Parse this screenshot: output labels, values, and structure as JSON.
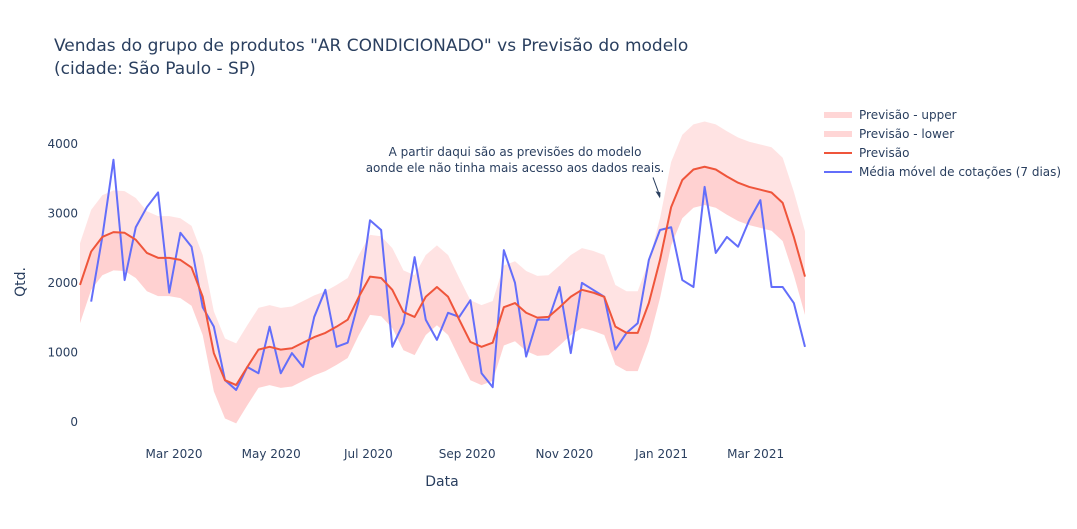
{
  "chart_data": {
    "type": "line",
    "title": [
      "Vendas do grupo de produtos \"AR CONDICIONADO\" vs Previsão do modelo",
      "(cidade: São Paulo - SP)"
    ],
    "xlabel": "Data",
    "ylabel": "Qtd.",
    "x_start": "2020-01-02",
    "x_step_days": 7,
    "xlim": [
      "2020-01-02",
      "2021-04-01"
    ],
    "ylim": [
      -260,
      4630
    ],
    "yticks": [
      0,
      1000,
      2000,
      3000,
      4000
    ],
    "xticks": [
      {
        "date": "2020-03-01",
        "label": "Mar 2020"
      },
      {
        "date": "2020-05-01",
        "label": "May 2020"
      },
      {
        "date": "2020-07-01",
        "label": "Jul 2020"
      },
      {
        "date": "2020-09-01",
        "label": "Sep 2020"
      },
      {
        "date": "2020-11-01",
        "label": "Nov 2020"
      },
      {
        "date": "2021-01-01",
        "label": "Jan 2021"
      },
      {
        "date": "2021-03-01",
        "label": "Mar 2021"
      }
    ],
    "grid": false,
    "legend_position": "right",
    "series": [
      {
        "name": "Previsão - upper",
        "color": "#ffcccc",
        "values": [
          2570,
          3050,
          3260,
          3330,
          3320,
          3220,
          3030,
          2960,
          2960,
          2930,
          2820,
          2400,
          1590,
          1200,
          1130,
          1390,
          1640,
          1680,
          1640,
          1660,
          1740,
          1820,
          1880,
          1970,
          2070,
          2400,
          2690,
          2670,
          2500,
          2180,
          2110,
          2400,
          2540,
          2400,
          2070,
          1750,
          1680,
          1740,
          2250,
          2310,
          2170,
          2100,
          2110,
          2250,
          2400,
          2500,
          2460,
          2400,
          1970,
          1880,
          1880,
          2310,
          2930,
          3740,
          4130,
          4280,
          4320,
          4280,
          4180,
          4090,
          4030,
          3990,
          3950,
          3800,
          3310,
          2740
        ]
      },
      {
        "name": "Previsão - lower",
        "color": "#ffb3b3",
        "values": [
          1420,
          1900,
          2110,
          2180,
          2170,
          2070,
          1880,
          1810,
          1810,
          1780,
          1670,
          1250,
          440,
          50,
          -20,
          240,
          490,
          530,
          490,
          510,
          590,
          670,
          730,
          820,
          920,
          1250,
          1540,
          1520,
          1350,
          1030,
          960,
          1250,
          1390,
          1250,
          920,
          600,
          530,
          590,
          1100,
          1160,
          1020,
          950,
          960,
          1100,
          1250,
          1350,
          1310,
          1250,
          820,
          730,
          730,
          1160,
          1780,
          2540,
          2930,
          3080,
          3120,
          3080,
          2980,
          2890,
          2830,
          2790,
          2750,
          2600,
          2110,
          1540
        ]
      },
      {
        "name": "Previsão",
        "color": "#EF553B",
        "values": [
          1970,
          2450,
          2660,
          2730,
          2720,
          2620,
          2430,
          2360,
          2360,
          2330,
          2220,
          1800,
          990,
          600,
          530,
          790,
          1040,
          1080,
          1040,
          1060,
          1140,
          1220,
          1280,
          1370,
          1470,
          1800,
          2090,
          2070,
          1900,
          1580,
          1510,
          1800,
          1940,
          1800,
          1470,
          1150,
          1080,
          1140,
          1650,
          1710,
          1570,
          1500,
          1510,
          1650,
          1800,
          1900,
          1860,
          1800,
          1370,
          1280,
          1280,
          1710,
          2330,
          3090,
          3480,
          3630,
          3670,
          3630,
          3530,
          3440,
          3380,
          3340,
          3300,
          3150,
          2660,
          2090
        ]
      },
      {
        "name": "Média móvel de cotações (7 dias)",
        "color": "#636EFA",
        "values": [
          null,
          1730,
          2660,
          3770,
          2040,
          2800,
          3090,
          3300,
          1860,
          2720,
          2520,
          1650,
          1370,
          600,
          460,
          790,
          700,
          1370,
          700,
          990,
          790,
          1510,
          1900,
          1080,
          1140,
          1750,
          2900,
          2760,
          1080,
          1420,
          2370,
          1470,
          1180,
          1570,
          1510,
          1750,
          700,
          500,
          2470,
          2000,
          940,
          1470,
          1470,
          1940,
          990,
          2000,
          1900,
          1800,
          1040,
          1280,
          1420,
          2330,
          2760,
          2800,
          2040,
          1940,
          3380,
          2430,
          2660,
          2520,
          2900,
          3190,
          1940,
          1940,
          1710,
          1080
        ]
      }
    ],
    "annotation": {
      "lines": [
        "A partir daqui são as previsões do modelo",
        "aonde ele não tinha mais acesso aos dados reais."
      ],
      "date": "2020-12-31",
      "value": 3200
    }
  }
}
